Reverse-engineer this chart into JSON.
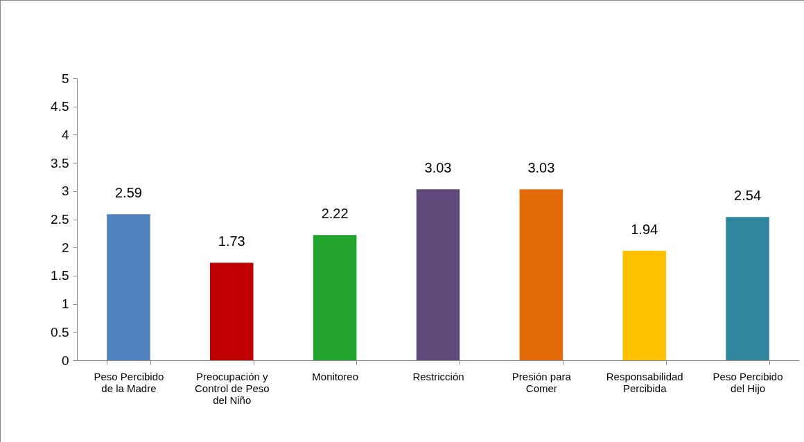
{
  "chart_data": {
    "type": "bar",
    "categories": [
      "Peso Percibido de la Madre",
      "Preocupación y Control de Peso del Niño",
      "Monitoreo",
      "Restricción",
      "Presión para Comer",
      "Responsabilidad Percibida",
      "Peso Percibido del Hijo"
    ],
    "values": [
      2.59,
      1.73,
      2.22,
      3.03,
      3.03,
      1.94,
      2.54
    ],
    "colors": [
      "#4f81bd",
      "#c00000",
      "#21a32e",
      "#604a7b",
      "#e46c0a",
      "#ffc000",
      "#31859c"
    ],
    "ylim": [
      0,
      5
    ],
    "yticks": [
      0,
      0.5,
      1,
      1.5,
      2,
      2.5,
      3,
      3.5,
      4,
      4.5,
      5
    ],
    "data_labels": true
  }
}
